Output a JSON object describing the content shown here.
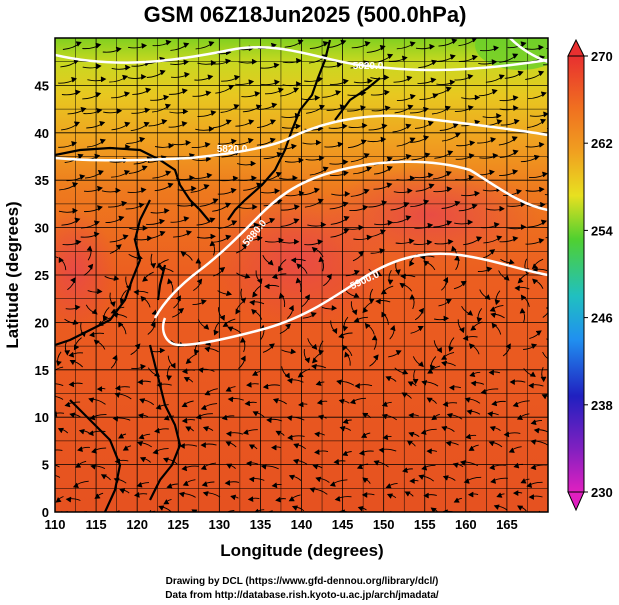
{
  "chart_data": {
    "type": "heatmap",
    "title": "GSM 06Z18Jun2025 (500.0hPa)",
    "xlabel": "Longitude (degrees)",
    "ylabel": "Latitude  (degrees)",
    "xlim": [
      110,
      170
    ],
    "ylim": [
      0,
      50
    ],
    "x_ticks": [
      "110",
      "115",
      "120",
      "125",
      "130",
      "135",
      "140",
      "145",
      "150",
      "155",
      "160",
      "165"
    ],
    "y_ticks": [
      "0",
      "5",
      "10",
      "15",
      "20",
      "25",
      "30",
      "35",
      "40",
      "45"
    ],
    "colorbar": {
      "min": 230,
      "max": 270,
      "labels": [
        "270",
        "262",
        "254",
        "246",
        "238",
        "230"
      ]
    },
    "contour_labels": [
      "5820.0",
      "5880.0",
      "5820.0",
      "5900.0"
    ],
    "colors": {
      "warm": "#e8401e",
      "orange": "#f08018",
      "yellow": "#e0d020",
      "green": "#5cc830",
      "contour": "#ffffff"
    }
  },
  "credits": {
    "line1": "Drawing by DCL (https://www.gfd-dennou.org/library/dcl/)",
    "line2": "Data from http://database.rish.kyoto-u.ac.jp/arch/jmadata/"
  }
}
